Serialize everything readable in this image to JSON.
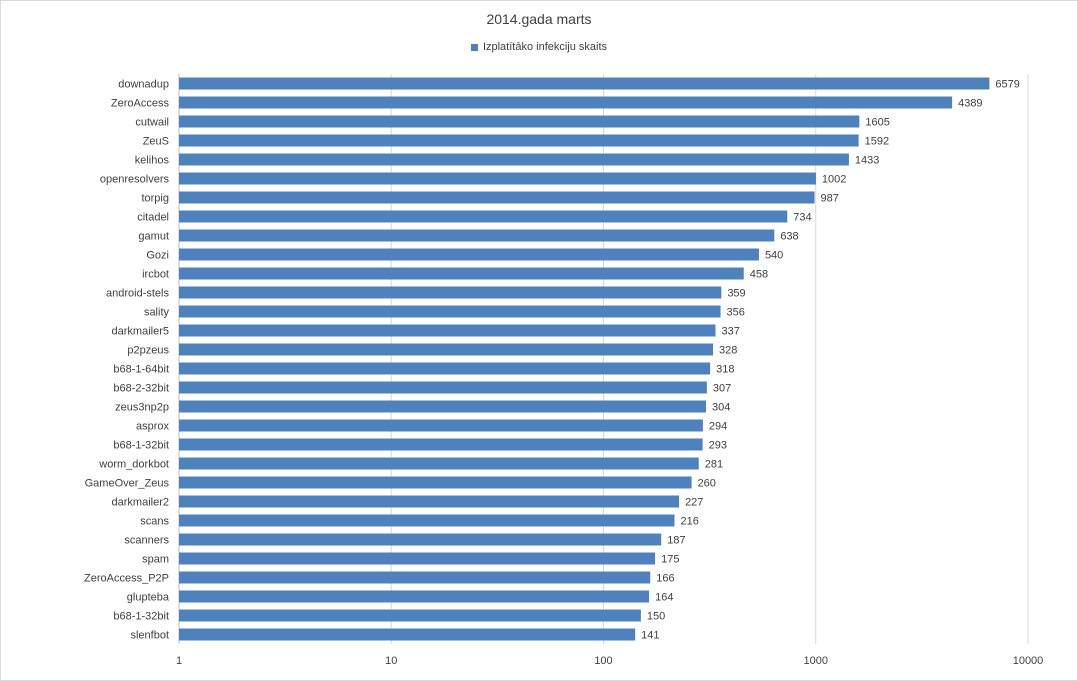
{
  "chart_data": {
    "type": "bar",
    "orientation": "horizontal",
    "title": "2014.gada marts",
    "xscale": "log",
    "xlim": [
      1,
      10000
    ],
    "xticks": [
      "1",
      "10",
      "100",
      "1000",
      "10000"
    ],
    "legend": "top-center",
    "grid": true,
    "bar_color": "#4f81bd",
    "series": [
      {
        "name": "Izplatītāko infekciju skaits"
      }
    ],
    "categories": [
      "downadup",
      "ZeroAccess",
      "cutwail",
      "ZeuS",
      "kelihos",
      "openresolvers",
      "torpig",
      "citadel",
      "gamut",
      "Gozi",
      "ircbot",
      "android-stels",
      "sality",
      "darkmailer5",
      "p2pzeus",
      "b68-1-64bit",
      "b68-2-32bit",
      "zeus3np2p",
      "asprox",
      "b68-1-32bit",
      "worm_dorkbot",
      "GameOver_Zeus",
      "darkmailer2",
      "scans",
      "scanners",
      "spam",
      "ZeroAccess_P2P",
      "glupteba",
      "b68-1-32bit",
      "slenfbot"
    ],
    "values": [
      6579,
      4389,
      1605,
      1592,
      1433,
      1002,
      987,
      734,
      638,
      540,
      458,
      359,
      356,
      337,
      328,
      318,
      307,
      304,
      294,
      293,
      281,
      260,
      227,
      216,
      187,
      175,
      166,
      164,
      150,
      141
    ]
  }
}
